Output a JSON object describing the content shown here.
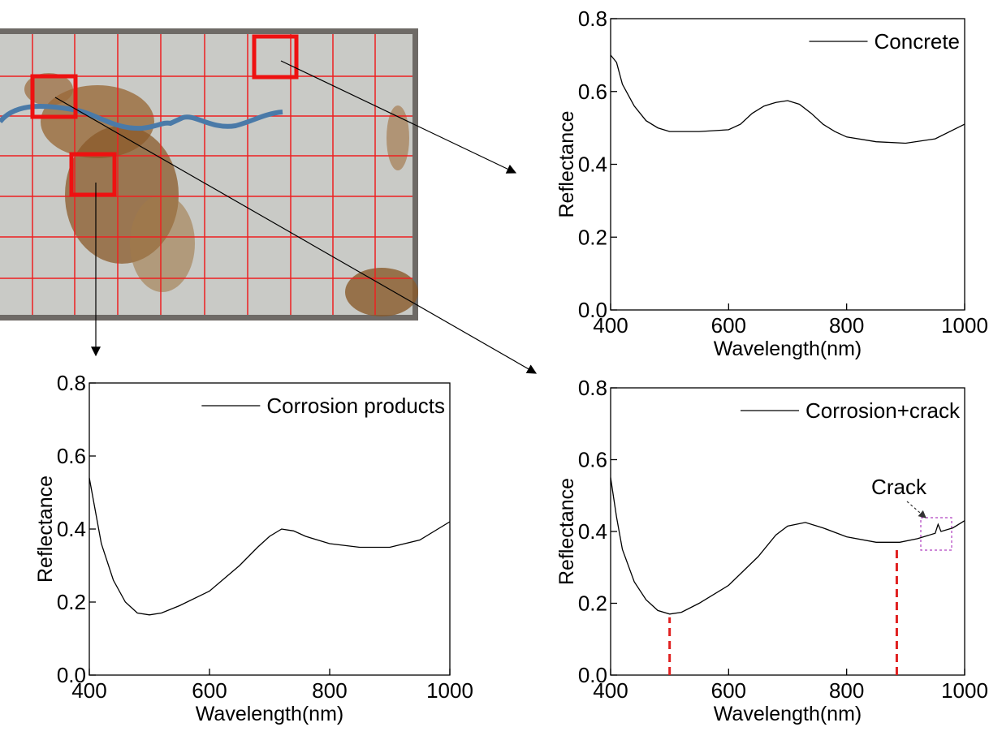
{
  "chart_data": [
    {
      "type": "line",
      "legend": "upper right",
      "x": [
        400,
        410,
        420,
        440,
        460,
        480,
        500,
        550,
        600,
        620,
        640,
        660,
        680,
        700,
        720,
        740,
        760,
        780,
        800,
        850,
        900,
        950,
        1000
      ],
      "series": [
        {
          "name": "Concrete",
          "color": "#000000",
          "values": [
            0.7,
            0.68,
            0.62,
            0.56,
            0.52,
            0.5,
            0.49,
            0.49,
            0.495,
            0.51,
            0.54,
            0.56,
            0.57,
            0.575,
            0.565,
            0.54,
            0.51,
            0.49,
            0.475,
            0.462,
            0.458,
            0.47,
            0.51
          ]
        }
      ],
      "xlabel": "Wavelength(nm)",
      "ylabel": "Reflectance",
      "xlim": [
        400,
        1000
      ],
      "xticks": [
        400,
        600,
        800,
        1000
      ],
      "ylim": [
        0,
        0.8
      ],
      "yticks": [
        {
          "value": 0,
          "label": "0.0"
        },
        {
          "value": 0.2,
          "label": "0.2"
        },
        {
          "value": 0.4,
          "label": "0.4"
        },
        {
          "value": 0.6,
          "label": "0.6"
        },
        {
          "value": 0.8,
          "label": "0.8"
        }
      ]
    },
    {
      "type": "line",
      "legend": "upper right",
      "x": [
        400,
        410,
        420,
        440,
        460,
        480,
        500,
        520,
        550,
        600,
        650,
        680,
        700,
        720,
        740,
        760,
        800,
        850,
        900,
        950,
        1000
      ],
      "series": [
        {
          "name": "Corrosion products",
          "color": "#000000",
          "values": [
            0.54,
            0.45,
            0.36,
            0.26,
            0.2,
            0.17,
            0.165,
            0.17,
            0.19,
            0.23,
            0.3,
            0.35,
            0.38,
            0.4,
            0.395,
            0.38,
            0.36,
            0.35,
            0.35,
            0.37,
            0.42
          ]
        }
      ],
      "xlabel": "Wavelength(nm)",
      "ylabel": "Reflectance",
      "xlim": [
        400,
        1000
      ],
      "xticks": [
        400,
        600,
        800,
        1000
      ],
      "ylim": [
        0,
        0.8
      ],
      "yticks": [
        {
          "value": 0,
          "label": "0.0"
        },
        {
          "value": 0.2,
          "label": "0.2"
        },
        {
          "value": 0.4,
          "label": "0.4"
        },
        {
          "value": 0.6,
          "label": "0.6"
        },
        {
          "value": 0.8,
          "label": "0.8"
        }
      ]
    },
    {
      "type": "line",
      "legend": "upper right",
      "x": [
        400,
        410,
        420,
        440,
        460,
        480,
        500,
        520,
        550,
        600,
        650,
        680,
        700,
        730,
        760,
        800,
        850,
        890,
        920,
        950,
        955,
        960,
        980,
        1000
      ],
      "series": [
        {
          "name": "Corrosion+crack",
          "color": "#000000",
          "values": [
            0.55,
            0.44,
            0.35,
            0.26,
            0.21,
            0.18,
            0.17,
            0.175,
            0.2,
            0.25,
            0.33,
            0.39,
            0.415,
            0.425,
            0.41,
            0.385,
            0.37,
            0.37,
            0.38,
            0.395,
            0.42,
            0.4,
            0.41,
            0.43
          ]
        }
      ],
      "vlines": [
        500,
        885
      ],
      "vline_color": "#e02020",
      "annotation": "Crack",
      "xlabel": "Wavelength(nm)",
      "ylabel": "Reflectance",
      "xlim": [
        400,
        1000
      ],
      "xticks": [
        400,
        600,
        800,
        1000
      ],
      "ylim": [
        0,
        0.8
      ],
      "yticks": [
        {
          "value": 0,
          "label": "0.0"
        },
        {
          "value": 0.2,
          "label": "0.2"
        },
        {
          "value": 0.4,
          "label": "0.4"
        },
        {
          "value": 0.6,
          "label": "0.6"
        },
        {
          "value": 0.8,
          "label": "0.8"
        }
      ]
    }
  ]
}
